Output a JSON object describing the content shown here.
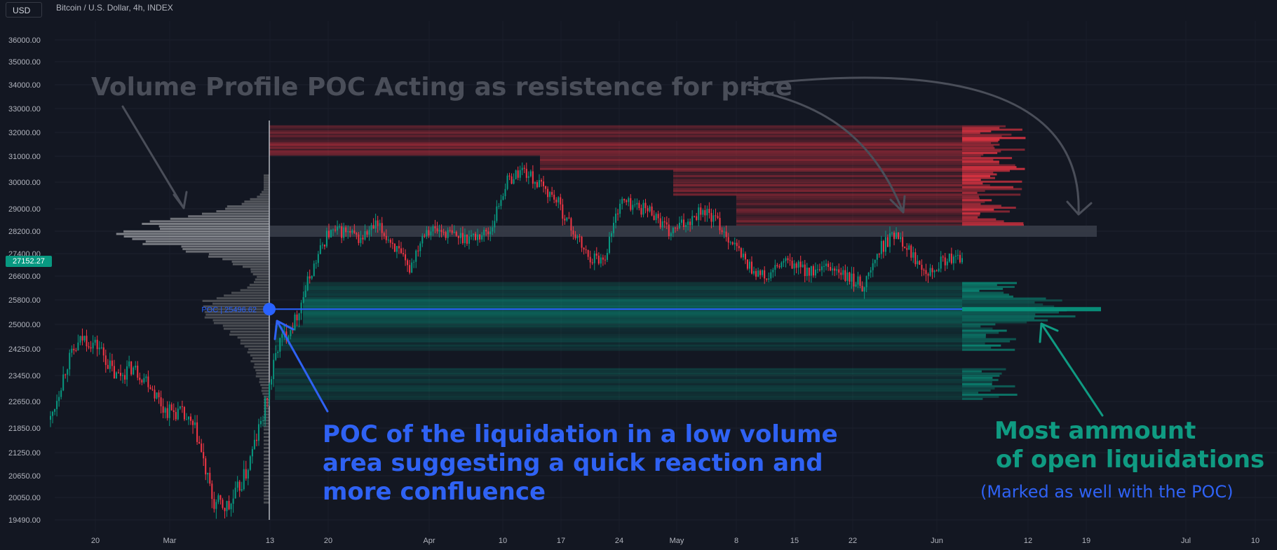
{
  "toolbar": {
    "currency_label": "USD"
  },
  "header": {
    "symbol_title": "Bitcoin / U.S. Dollar, 4h, INDEX"
  },
  "price_badge": "27152.27",
  "poc_label": "POC | 25496.62",
  "annotations": {
    "resistance": "Volume Profile POC Acting as resistence for price",
    "poc_lines": [
      "POC of the liquidation in a low volume",
      "area suggesting a quick reaction and",
      "more confluence"
    ],
    "most_lines": [
      "Most ammount",
      "of open liquidations"
    ],
    "marked": "(Marked as well with the POC)"
  },
  "colors": {
    "background": "#131722",
    "candle_up": "#089981",
    "candle_down": "#f23645",
    "poc_line": "#2962ff",
    "liq_red": "#f23645",
    "liq_green": "#089981",
    "annotation_gray": "#4a4e59",
    "annotation_blue": "#2f62f4",
    "annotation_teal": "#0f9b82"
  },
  "chart_data": {
    "type": "line",
    "title": "Bitcoin / U.S. Dollar, 4h, INDEX",
    "y_ticks": [
      36000,
      35000,
      34000,
      33000,
      32000,
      31000,
      30000,
      29000,
      28200,
      27400,
      26600,
      25800,
      25000,
      24250,
      23450,
      22650,
      21850,
      21250,
      20650,
      20050,
      19490
    ],
    "x_ticks": [
      "20",
      "Mar",
      "13",
      "20",
      "Apr",
      "10",
      "17",
      "24",
      "May",
      "8",
      "15",
      "22",
      "Jun",
      "12",
      "19",
      "Jul",
      "10"
    ],
    "series": [
      {
        "values": [
          22100,
          23800,
          24600,
          24300,
          23400,
          23700,
          23300,
          22400,
          22300,
          21700,
          19900,
          19800,
          20700,
          22100,
          24400,
          25100,
          26700,
          28100,
          28200,
          27900,
          28400,
          27800,
          26800,
          28300,
          28200,
          28000,
          28000,
          28200,
          30000,
          30500,
          29900,
          29400,
          28300,
          27300,
          27200,
          29300,
          29100,
          28900,
          28100,
          28500,
          29000,
          28500,
          27700,
          26900,
          26500,
          27100,
          26900,
          26700,
          26900,
          26500,
          26300,
          27600,
          28200,
          27300,
          26800,
          27200,
          27152
        ]
      }
    ],
    "volume_profile_poc": 25496.62,
    "resistance_band": [
      28000,
      28400
    ],
    "liquidation_band_red": [
      28400,
      32300
    ],
    "liquidation_band_green": [
      22700,
      26400
    ]
  }
}
